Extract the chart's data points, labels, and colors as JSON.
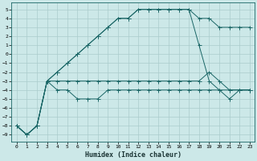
{
  "xlabel": "Humidex (Indice chaleur)",
  "bg_color": "#cce8e8",
  "grid_color": "#aacccc",
  "line_color": "#1a6666",
  "xlim": [
    -0.5,
    23.5
  ],
  "ylim": [
    -9.8,
    5.8
  ],
  "yticks": [
    5,
    4,
    3,
    2,
    1,
    0,
    -1,
    -2,
    -3,
    -4,
    -5,
    -6,
    -7,
    -8,
    -9
  ],
  "xticks": [
    0,
    1,
    2,
    3,
    4,
    5,
    6,
    7,
    8,
    9,
    10,
    11,
    12,
    13,
    14,
    15,
    16,
    17,
    18,
    19,
    20,
    21,
    22,
    23
  ],
  "line1_x": [
    0,
    1,
    2,
    3,
    4,
    5,
    6,
    7,
    8,
    9,
    10,
    11,
    12,
    13,
    14,
    15,
    16,
    17,
    18,
    19,
    20,
    21,
    22,
    23
  ],
  "line1_y": [
    -8,
    -9,
    -8,
    -3,
    -2,
    -1,
    0,
    1,
    2,
    3,
    4,
    4,
    5,
    5,
    5,
    5,
    5,
    5,
    4,
    4,
    3,
    3,
    3,
    3
  ],
  "line2_x": [
    0,
    1,
    2,
    3,
    4,
    5,
    6,
    7,
    8,
    9,
    10,
    11,
    12,
    13,
    14,
    15,
    16,
    17,
    18,
    19,
    20,
    21,
    22,
    23
  ],
  "line2_y": [
    -8,
    -9,
    -8,
    -3,
    -2,
    -1,
    0,
    1,
    2,
    3,
    4,
    4,
    5,
    5,
    5,
    5,
    5,
    5,
    1,
    -3,
    -4,
    -4,
    -4,
    -4
  ],
  "line3_x": [
    0,
    1,
    2,
    3,
    4,
    5,
    6,
    7,
    8,
    9,
    10,
    11,
    12,
    13,
    14,
    15,
    16,
    17,
    18,
    19,
    20,
    21,
    22,
    23
  ],
  "line3_y": [
    -8,
    -9,
    -8,
    -3,
    -3,
    -3,
    -3,
    -3,
    -3,
    -3,
    -3,
    -3,
    -3,
    -3,
    -3,
    -3,
    -3,
    -3,
    -3,
    -2,
    -3,
    -4,
    -4,
    -4
  ],
  "line4_x": [
    0,
    1,
    2,
    3,
    4,
    5,
    6,
    7,
    8,
    9,
    10,
    11,
    12,
    13,
    14,
    15,
    16,
    17,
    18,
    19,
    20,
    21,
    22,
    23
  ],
  "line4_y": [
    -8,
    -9,
    -8,
    -3,
    -4,
    -4,
    -5,
    -5,
    -5,
    -4,
    -4,
    -4,
    -4,
    -4,
    -4,
    -4,
    -4,
    -4,
    -4,
    -4,
    -4,
    -5,
    -4,
    -4
  ],
  "tick_fontsize": 4.5,
  "xlabel_fontsize": 6.0,
  "marker_size": 2.0,
  "line_width": 0.7
}
